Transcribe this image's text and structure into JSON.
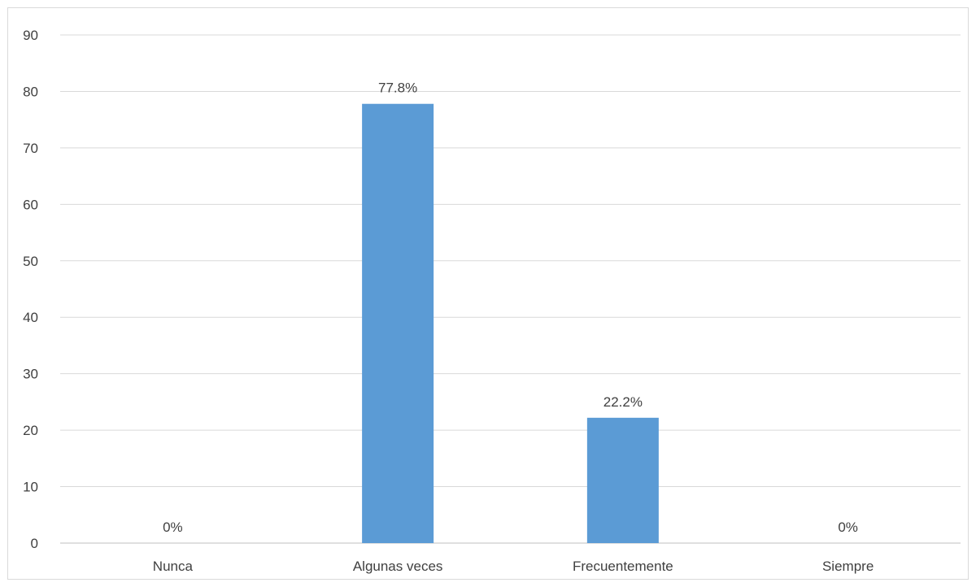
{
  "chart_data": {
    "type": "bar",
    "categories": [
      "Nunca",
      "Algunas veces",
      "Frecuentemente",
      "Siempre"
    ],
    "values": [
      0,
      77.8,
      22.2,
      0
    ],
    "data_labels": [
      "0%",
      "77.8%",
      "22.2%",
      "0%"
    ],
    "title": "",
    "xlabel": "",
    "ylabel": "",
    "ylim": [
      0,
      90
    ],
    "yticks": [
      0,
      10,
      20,
      30,
      40,
      50,
      60,
      70,
      80,
      90
    ],
    "grid": true,
    "legend": "none",
    "bar_color": "#5b9bd5",
    "grid_color": "#d9d9d9",
    "text_color": "#404040"
  }
}
